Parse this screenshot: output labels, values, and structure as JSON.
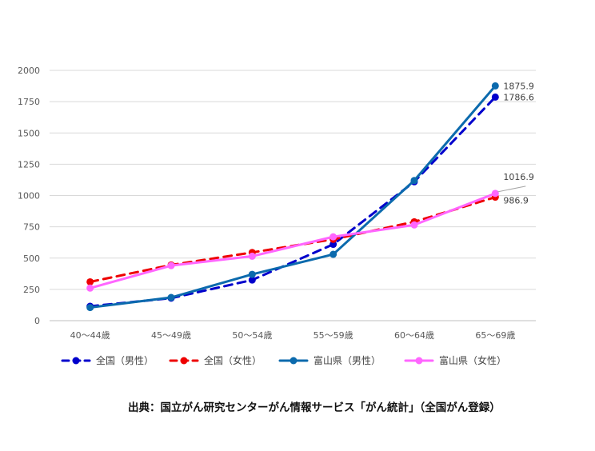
{
  "chart_data": {
    "type": "line",
    "categories": [
      "40～44歳",
      "45～49歳",
      "50～54歳",
      "55～59歳",
      "60～64歳",
      "65～69歳"
    ],
    "ylim": [
      0,
      2000
    ],
    "yticks": [
      0,
      250,
      500,
      750,
      1000,
      1250,
      1500,
      1750,
      2000
    ],
    "grid": true,
    "legend_position": "bottom",
    "series": [
      {
        "name": "全国（男性）",
        "color": "#0000cc",
        "dashed": true,
        "values": [
          115,
          180,
          325,
          610,
          1110,
          1786.6
        ]
      },
      {
        "name": "全国（女性）",
        "color": "#ee0000",
        "dashed": true,
        "values": [
          310,
          445,
          545,
          650,
          790,
          986.9
        ]
      },
      {
        "name": "富山県（男性）",
        "color": "#0b6aad",
        "dashed": false,
        "values": [
          105,
          185,
          370,
          530,
          1120,
          1875.9
        ]
      },
      {
        "name": "富山県（女性）",
        "color": "#ff66ff",
        "dashed": false,
        "values": [
          260,
          440,
          515,
          670,
          765,
          1016.9
        ]
      }
    ],
    "data_labels": [
      {
        "series": 2,
        "index": 5,
        "text": "1875.9"
      },
      {
        "series": 0,
        "index": 5,
        "text": "1786.6"
      },
      {
        "series": 3,
        "index": 5,
        "text": "1016.9"
      },
      {
        "series": 1,
        "index": 5,
        "text": "986.9"
      }
    ]
  },
  "source_text": "出典：国立がん研究センターがん情報サービス「がん統計」（全国がん登録）"
}
